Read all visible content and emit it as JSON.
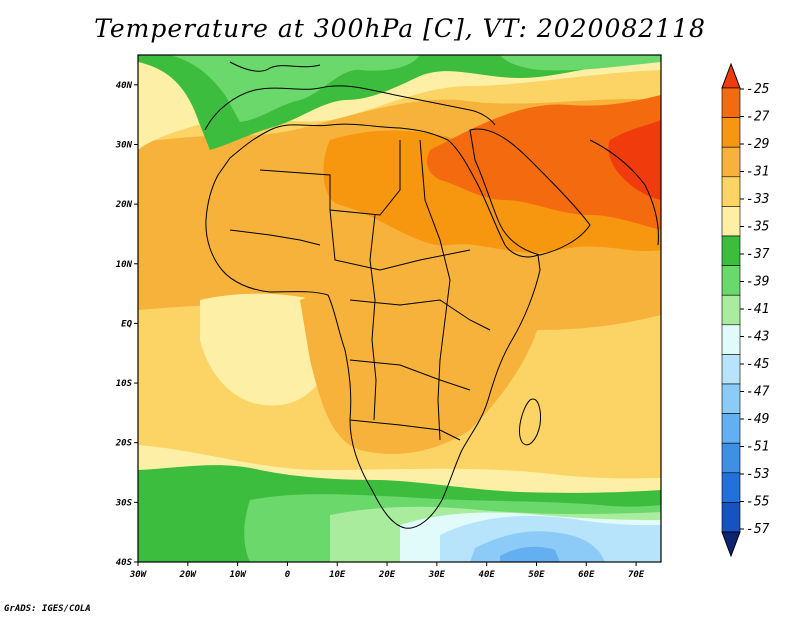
{
  "title": "Temperature at 300hPa [C], VT: 2020082118",
  "credit": "GrADS: IGES/COLA",
  "map": {
    "lon_range": [
      -30,
      75
    ],
    "lat_range": [
      -40,
      45
    ],
    "x_ticks": [
      {
        "lon": -30,
        "label": "30W"
      },
      {
        "lon": -20,
        "label": "20W"
      },
      {
        "lon": -10,
        "label": "10W"
      },
      {
        "lon": 0,
        "label": "0"
      },
      {
        "lon": 10,
        "label": "10E"
      },
      {
        "lon": 20,
        "label": "20E"
      },
      {
        "lon": 30,
        "label": "30E"
      },
      {
        "lon": 40,
        "label": "40E"
      },
      {
        "lon": 50,
        "label": "50E"
      },
      {
        "lon": 60,
        "label": "60E"
      },
      {
        "lon": 70,
        "label": "70E"
      }
    ],
    "y_ticks": [
      {
        "lat": 40,
        "label": "40N"
      },
      {
        "lat": 30,
        "label": "30N"
      },
      {
        "lat": 20,
        "label": "20N"
      },
      {
        "lat": 10,
        "label": "10N"
      },
      {
        "lat": 0,
        "label": "EQ"
      },
      {
        "lat": -10,
        "label": "10S"
      },
      {
        "lat": -20,
        "label": "20S"
      },
      {
        "lat": -30,
        "label": "30S"
      },
      {
        "lat": -40,
        "label": "40S"
      }
    ]
  },
  "colorbar": {
    "labels": [
      "-25",
      "-27",
      "-29",
      "-31",
      "-33",
      "-35",
      "-37",
      "-39",
      "-41",
      "-43",
      "-45",
      "-47",
      "-49",
      "-51",
      "-53",
      "-55",
      "-57"
    ],
    "colors": [
      "#f03c0c",
      "#f46a0f",
      "#f7960f",
      "#f7b23c",
      "#fbd465",
      "#fdf0a6",
      "#3dbd3d",
      "#6ad86a",
      "#a9ec9d",
      "#e1fbfb",
      "#b8e4fb",
      "#8ccbf8",
      "#64afef",
      "#3f8fe4",
      "#2370dd",
      "#1652c2",
      "#0d2475"
    ]
  }
}
